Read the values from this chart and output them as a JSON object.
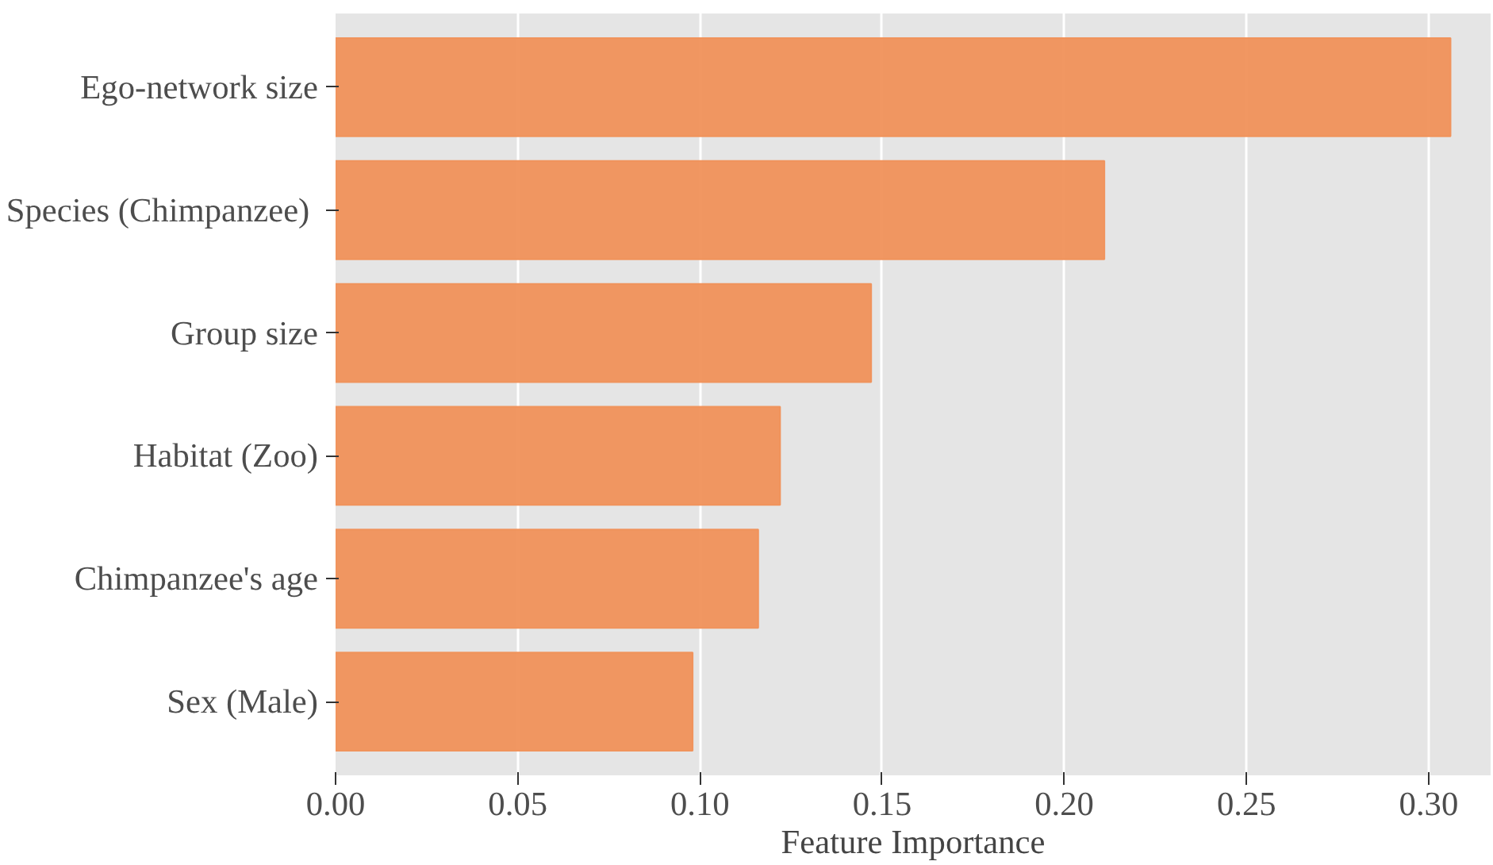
{
  "chart_data": {
    "type": "bar",
    "orientation": "horizontal",
    "xlabel": "Feature Importance",
    "categories": [
      "Ego-network size",
      "Species (Chimpanzee) ",
      "Group size",
      "Habitat (Zoo)",
      "Chimpanzee's age",
      "Sex (Male)"
    ],
    "values": [
      0.306,
      0.211,
      0.147,
      0.122,
      0.116,
      0.098
    ],
    "color": "#f0915a",
    "xlim": [
      0,
      0.317
    ],
    "xticks": [
      {
        "value": 0,
        "label": "0.00"
      },
      0.05,
      {
        "value": 0.1,
        "label": "0.10"
      },
      0.15,
      {
        "value": 0.2,
        "label": "0.20"
      },
      0.25,
      {
        "value": 0.3,
        "label": "0.30"
      }
    ],
    "grid": "x"
  }
}
